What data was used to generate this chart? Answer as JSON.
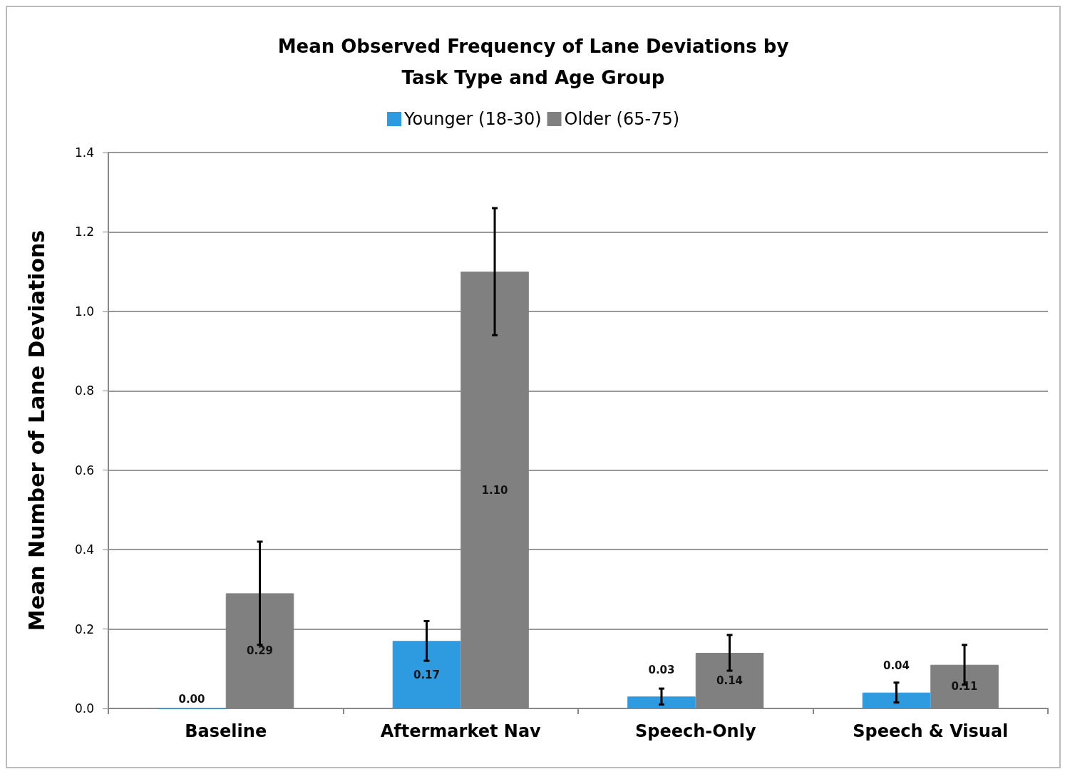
{
  "chart_data": {
    "type": "bar",
    "title": "Mean Observed Frequency of Lane Deviations by\nTask Type and Age Group",
    "ylabel": "Mean Number of Lane Deviations",
    "categories": [
      "Baseline",
      "Aftermarket Nav",
      "Speech-Only",
      "Speech & Visual"
    ],
    "series": [
      {
        "name": "Younger (18-30)",
        "color": "#2e9be0",
        "values": [
          0,
          0.17,
          0.03,
          0.04
        ],
        "errors": [
          null,
          0.05,
          0.02,
          0.025
        ],
        "value_labels": [
          "0.00",
          "0.17",
          "0.03",
          "0.04"
        ]
      },
      {
        "name": "Older (65-75)",
        "color": "#808080",
        "values": [
          0.29,
          1.1,
          0.14,
          0.11
        ],
        "errors": [
          0.13,
          0.16,
          0.045,
          0.05
        ],
        "value_labels": [
          "0.29",
          "1.10",
          "0.14",
          "0.11"
        ]
      }
    ],
    "ylim": [
      0,
      1.4
    ],
    "yticks": [
      {
        "value": 0,
        "label": "0.0"
      },
      0.2,
      0.4,
      0.6,
      0.8,
      {
        "value": 1,
        "label": "1.0"
      },
      1.2,
      {
        "value": 1.4,
        "label": "1.4"
      }
    ],
    "grid": "y",
    "legend": "top"
  }
}
